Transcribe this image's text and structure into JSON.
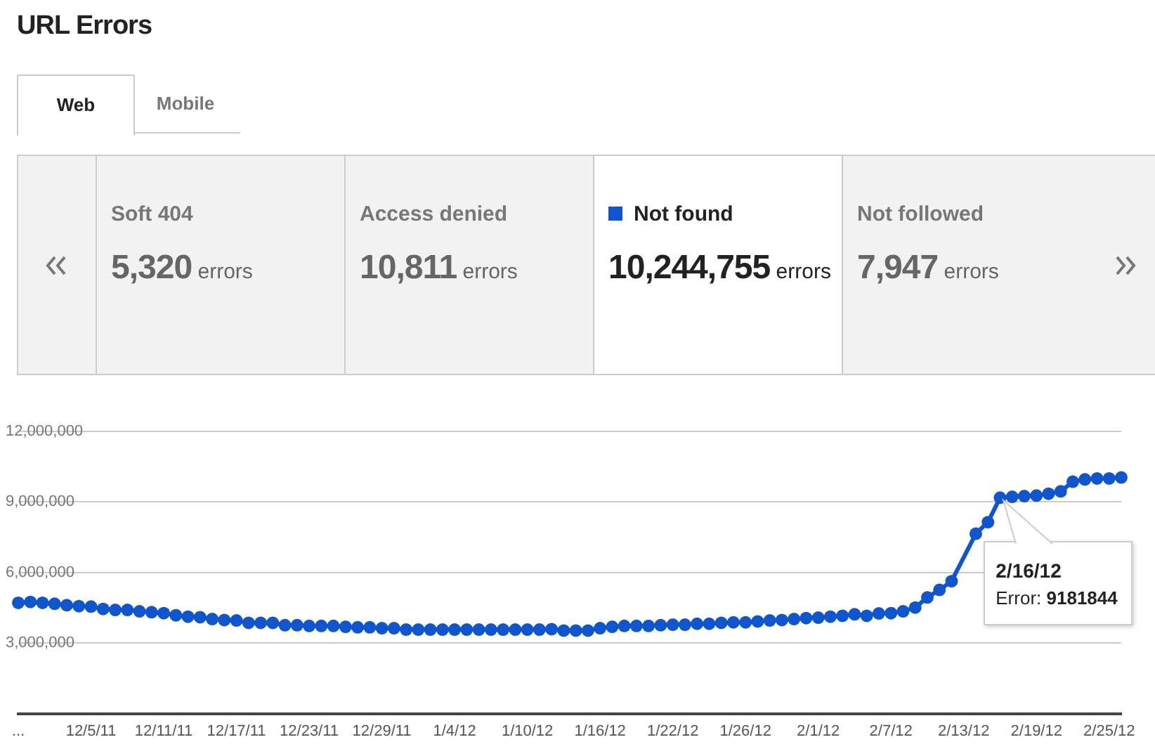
{
  "chart_data": {
    "type": "line",
    "title": "URL Errors",
    "annotations": [
      "Web",
      "Mobile",
      "Soft 404",
      "5,320 errors",
      "Access denied",
      "10,811 errors",
      "10,244,755 errors",
      "Not followed",
      "7,947 errors",
      "2/16/12\nError: 9181844"
    ],
    "categories": [
      "...",
      null,
      null,
      null,
      null,
      null,
      "12/5/11",
      null,
      null,
      null,
      null,
      null,
      "12/11/11",
      null,
      null,
      null,
      null,
      null,
      "12/17/11",
      null,
      null,
      null,
      null,
      null,
      "12/23/11",
      null,
      null,
      null,
      null,
      null,
      "12/29/11",
      null,
      null,
      null,
      null,
      null,
      "1/4/12",
      null,
      null,
      null,
      null,
      null,
      "1/10/12",
      null,
      null,
      null,
      null,
      null,
      "1/16/12",
      null,
      null,
      null,
      null,
      null,
      "1/22/12",
      null,
      null,
      null,
      null,
      null,
      "1/26/12",
      null,
      null,
      null,
      null,
      null,
      "2/1/12",
      null,
      null,
      null,
      null,
      null,
      "2/7/12",
      null,
      null,
      null,
      null,
      null,
      "2/13/12",
      null,
      null,
      null,
      null,
      null,
      "2/19/12",
      null,
      null,
      null,
      null,
      null,
      "2/25/12",
      null
    ],
    "series": [
      {
        "name": "Not found",
        "color": "#1155cc",
        "values": [
          4710000,
          4750000,
          4710000,
          4670000,
          4610000,
          4570000,
          4550000,
          4450000,
          4410000,
          4410000,
          4350000,
          4310000,
          4270000,
          4180000,
          4120000,
          4100000,
          4020000,
          3980000,
          3960000,
          3860000,
          3860000,
          3860000,
          3760000,
          3760000,
          3730000,
          3730000,
          3730000,
          3690000,
          3670000,
          3670000,
          3630000,
          3630000,
          3570000,
          3570000,
          3570000,
          3570000,
          3570000,
          3570000,
          3570000,
          3570000,
          3570000,
          3570000,
          3570000,
          3570000,
          3590000,
          3530000,
          3530000,
          3530000,
          3630000,
          3690000,
          3730000,
          3730000,
          3730000,
          3760000,
          3780000,
          3780000,
          3820000,
          3820000,
          3860000,
          3880000,
          3880000,
          3920000,
          3960000,
          3980000,
          4020000,
          4060000,
          4080000,
          4120000,
          4160000,
          4220000,
          4160000,
          4260000,
          4270000,
          4350000,
          4510000,
          4940000,
          5260000,
          5630000,
          null,
          7650000,
          8140000,
          9181844,
          9220000,
          9250000,
          9270000,
          9350000,
          9450000,
          9860000,
          9960000,
          10000000,
          10000000,
          10040000
        ]
      }
    ],
    "ylim": [
      0,
      12000000
    ],
    "yticks": [
      {
        "value": 0,
        "label": null
      },
      {
        "value": 3000000,
        "label": "3,000,000"
      },
      {
        "value": 6000000,
        "label": "6,000,000"
      },
      {
        "value": 9000000,
        "label": "9,000,000"
      },
      {
        "value": 12000000,
        "label": "12,000,000"
      }
    ],
    "grid": "y",
    "legend": "top",
    "marker": "circle",
    "line_style": "solid"
  }
}
